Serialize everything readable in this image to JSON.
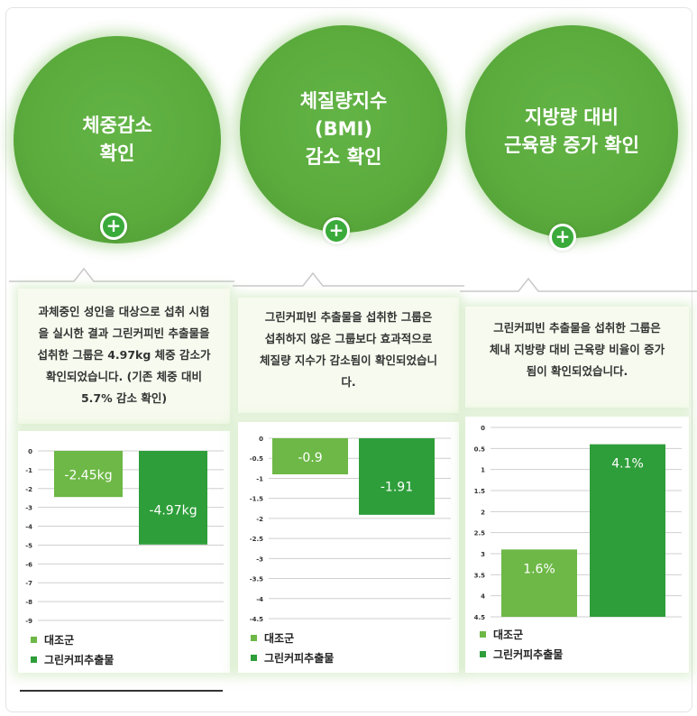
{
  "panels": [
    {
      "circle_title": "체중감소\n확인",
      "plus": "+",
      "description": "과체중인 성인을 대상으로 섭취 시험\n을 실시한 결과 그린커피빈 추출물을\n섭취한 그룹은 4.97kg 체중 감소가\n확인되었습니다. (기존 체중 대비\n5.7% 감소 확인)",
      "legend": [
        "대조군",
        "그린커피추출물"
      ]
    },
    {
      "circle_title": "체질량지수\n(BMI)\n감소 확인",
      "plus": "+",
      "description": "그린커피빈 추출물을 섭취한 그룹은\n섭취하지 않은 그룹보다 효과적으로\n체질량 지수가 감소됨이 확인되었습니\n다.",
      "legend": [
        "대조군",
        "그린커피추출물"
      ]
    },
    {
      "circle_title": "지방량 대비\n근육량 증가 확인",
      "plus": "+",
      "description": "그린커피빈 추출물을 섭취한 그룹은\n체내 지방량 대비 근육량 비율이 증가\n됨이 확인되었습니다.",
      "legend": [
        "대조군",
        "그린커피추출물"
      ]
    }
  ],
  "colors": {
    "control": "#6db846",
    "treatment": "#2e9e3a",
    "circle": "#5aaa3c",
    "gridline": "#cfcfcf"
  },
  "chart_data": [
    {
      "type": "bar",
      "categories": [
        "대조군",
        "그린커피추출물"
      ],
      "values": [
        -2.45,
        -4.97
      ],
      "data_labels": [
        "-2.45kg",
        "-4.97kg"
      ],
      "ylim": [
        -9,
        0
      ],
      "yticks": [
        "0",
        "-1",
        "-2",
        "-3",
        "-4",
        "-5",
        "-6",
        "-7",
        "-8",
        "-9"
      ],
      "grid": true,
      "legend_position": "bottom-left"
    },
    {
      "type": "bar",
      "categories": [
        "대조군",
        "그린커피추출물"
      ],
      "values": [
        -0.9,
        -1.91
      ],
      "data_labels": [
        "-0.9",
        "-1.91"
      ],
      "ylim": [
        -4.5,
        0
      ],
      "yticks": [
        "0",
        "-0.5",
        "-1",
        "-1.5",
        "-2",
        "-2.5",
        "-3",
        "-3.5",
        "-4",
        "-4.5"
      ],
      "grid": true,
      "legend_position": "bottom-left"
    },
    {
      "type": "bar",
      "categories": [
        "대조군",
        "그린커피추출물"
      ],
      "values": [
        1.6,
        4.1
      ],
      "data_labels": [
        "1.6%",
        "4.1%"
      ],
      "ylim": [
        0,
        4.5
      ],
      "yticks": [
        "0",
        "0.5",
        "1",
        "1.5",
        "2",
        "2.5",
        "3",
        "3.5",
        "4",
        "4.5"
      ],
      "grid": true,
      "legend_position": "bottom-left"
    }
  ]
}
